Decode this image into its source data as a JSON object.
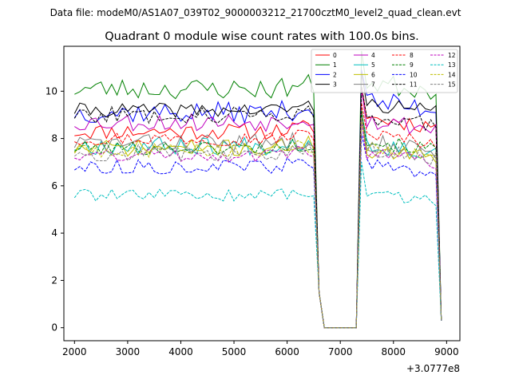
{
  "chart_data": {
    "type": "line",
    "suptitle": "Data file: modeM0/AS1A07_039T02_9000003212_21700cztM0_level2_quad_clean.evt",
    "title": "Quadrant 0 module wise count rates with 100.0s bins.",
    "xlabel": "",
    "ylabel": "",
    "x_offset_label": "+3.0777e8",
    "xlim": [
      1800,
      9250
    ],
    "ylim": [
      -0.55,
      11.9
    ],
    "xticks": [
      2000,
      3000,
      4000,
      5000,
      6000,
      7000,
      8000,
      9000
    ],
    "yticks": [
      0,
      2,
      4,
      6,
      8,
      10
    ],
    "x": {
      "start": 2000,
      "end": 8900,
      "step": 100
    },
    "gap": {
      "start": 6700,
      "end": 7300,
      "value": 0.0
    },
    "legend": {
      "placement": "top-right",
      "columns": 4
    },
    "series": [
      {
        "name": "0",
        "color": "#ff0000",
        "dash": "solid",
        "mean": 8.3,
        "amp": 0.35,
        "seed": 11,
        "post": 8.9,
        "end": 0.3
      },
      {
        "name": "1",
        "color": "#008000",
        "dash": "solid",
        "mean": 10.1,
        "amp": 0.45,
        "seed": 23,
        "post": 10.4,
        "end": 0.3
      },
      {
        "name": "2",
        "color": "#0000ff",
        "dash": "solid",
        "mean": 9.1,
        "amp": 0.45,
        "seed": 37,
        "post": 9.6,
        "end": 0.3
      },
      {
        "name": "3",
        "color": "#000000",
        "dash": "solid",
        "mean": 9.2,
        "amp": 0.3,
        "seed": 41,
        "post": 9.5,
        "end": 0.3
      },
      {
        "name": "4",
        "color": "#bf00bf",
        "dash": "solid",
        "mean": 8.7,
        "amp": 0.4,
        "seed": 53,
        "post": 8.8,
        "end": 0.3
      },
      {
        "name": "5",
        "color": "#00bfbf",
        "dash": "solid",
        "mean": 7.7,
        "amp": 0.4,
        "seed": 67,
        "post": 7.8,
        "end": 0.3
      },
      {
        "name": "6",
        "color": "#bfbf00",
        "dash": "solid",
        "mean": 7.6,
        "amp": 0.35,
        "seed": 71,
        "post": 7.5,
        "end": 0.3
      },
      {
        "name": "7",
        "color": "#808080",
        "dash": "solid",
        "mean": 7.8,
        "amp": 0.4,
        "seed": 83,
        "post": 7.9,
        "end": 0.3
      },
      {
        "name": "8",
        "color": "#ff0000",
        "dash": "dashed",
        "mean": 8.0,
        "amp": 0.3,
        "seed": 97,
        "post": 8.2,
        "end": 0.3
      },
      {
        "name": "9",
        "color": "#008000",
        "dash": "dashed",
        "mean": 7.6,
        "amp": 0.3,
        "seed": 101,
        "post": 7.9,
        "end": 0.3
      },
      {
        "name": "10",
        "color": "#0000ff",
        "dash": "dashed",
        "mean": 6.8,
        "amp": 0.3,
        "seed": 113,
        "post": 6.9,
        "end": 0.3
      },
      {
        "name": "11",
        "color": "#000000",
        "dash": "dashed",
        "mean": 9.0,
        "amp": 0.35,
        "seed": 127,
        "post": 8.9,
        "end": 0.3
      },
      {
        "name": "12",
        "color": "#bf00bf",
        "dash": "dashed",
        "mean": 7.3,
        "amp": 0.3,
        "seed": 131,
        "post": 7.4,
        "end": 0.3
      },
      {
        "name": "13",
        "color": "#00bfbf",
        "dash": "dashed",
        "mean": 5.6,
        "amp": 0.25,
        "seed": 139,
        "post": 5.7,
        "end": 0.3
      },
      {
        "name": "14",
        "color": "#bfbf00",
        "dash": "dashed",
        "mean": 7.5,
        "amp": 0.3,
        "seed": 149,
        "post": 7.6,
        "end": 0.3
      },
      {
        "name": "15",
        "color": "#808080",
        "dash": "dashed",
        "mean": 7.4,
        "amp": 0.35,
        "seed": 157,
        "post": 7.6,
        "end": 0.3
      }
    ]
  }
}
